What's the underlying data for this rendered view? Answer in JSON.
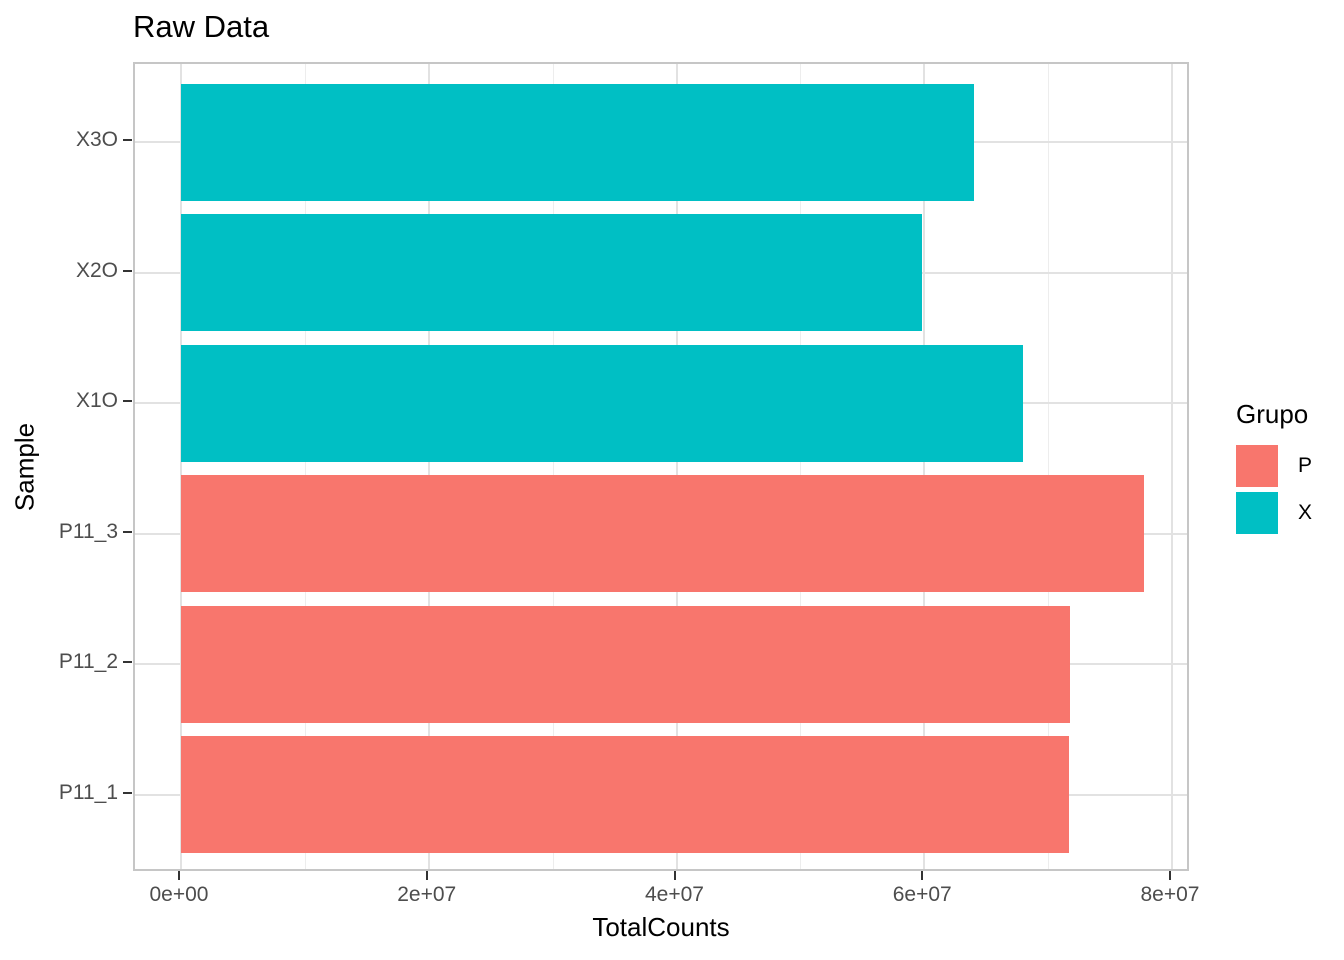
{
  "chart_data": {
    "type": "bar",
    "orientation": "horizontal",
    "title": "Raw Data",
    "xlabel": "TotalCounts",
    "ylabel": "Sample",
    "grid": true,
    "legend_position": "right",
    "legend_title": "Grupo",
    "legend_entries": [
      {
        "label": "P",
        "color": "#F8766D"
      },
      {
        "label": "X",
        "color": "#00BFC4"
      }
    ],
    "categories_top_to_bottom": [
      "X3O",
      "X2O",
      "X1O",
      "P11_3",
      "P11_2",
      "P11_1"
    ],
    "bars": [
      {
        "sample": "X3O",
        "group": "X",
        "value": 64000000
      },
      {
        "sample": "X2O",
        "group": "X",
        "value": 59800000
      },
      {
        "sample": "X1O",
        "group": "X",
        "value": 68000000
      },
      {
        "sample": "P11_3",
        "group": "P",
        "value": 77700000
      },
      {
        "sample": "P11_2",
        "group": "P",
        "value": 71800000
      },
      {
        "sample": "P11_1",
        "group": "P",
        "value": 71700000
      }
    ],
    "group_colors": {
      "P": "#F8766D",
      "X": "#00BFC4"
    },
    "x_axis": {
      "range": [
        0,
        81500000
      ],
      "major_ticks": [
        {
          "value": 0,
          "label": "0e+00"
        },
        {
          "value": 20000000,
          "label": "2e+07"
        },
        {
          "value": 40000000,
          "label": "4e+07"
        },
        {
          "value": 60000000,
          "label": "6e+07"
        },
        {
          "value": 80000000,
          "label": "8e+07"
        }
      ],
      "minor_ticks": [
        10000000,
        30000000,
        50000000,
        70000000
      ]
    },
    "style_colors": {
      "panel_border": "#c6c6c6",
      "grid_major": "#e2e2e2",
      "grid_minor": "#ededed",
      "tick_mark": "#333333",
      "tick_label": "#4d4d4d",
      "text": "#000000",
      "background": "#ffffff"
    }
  }
}
